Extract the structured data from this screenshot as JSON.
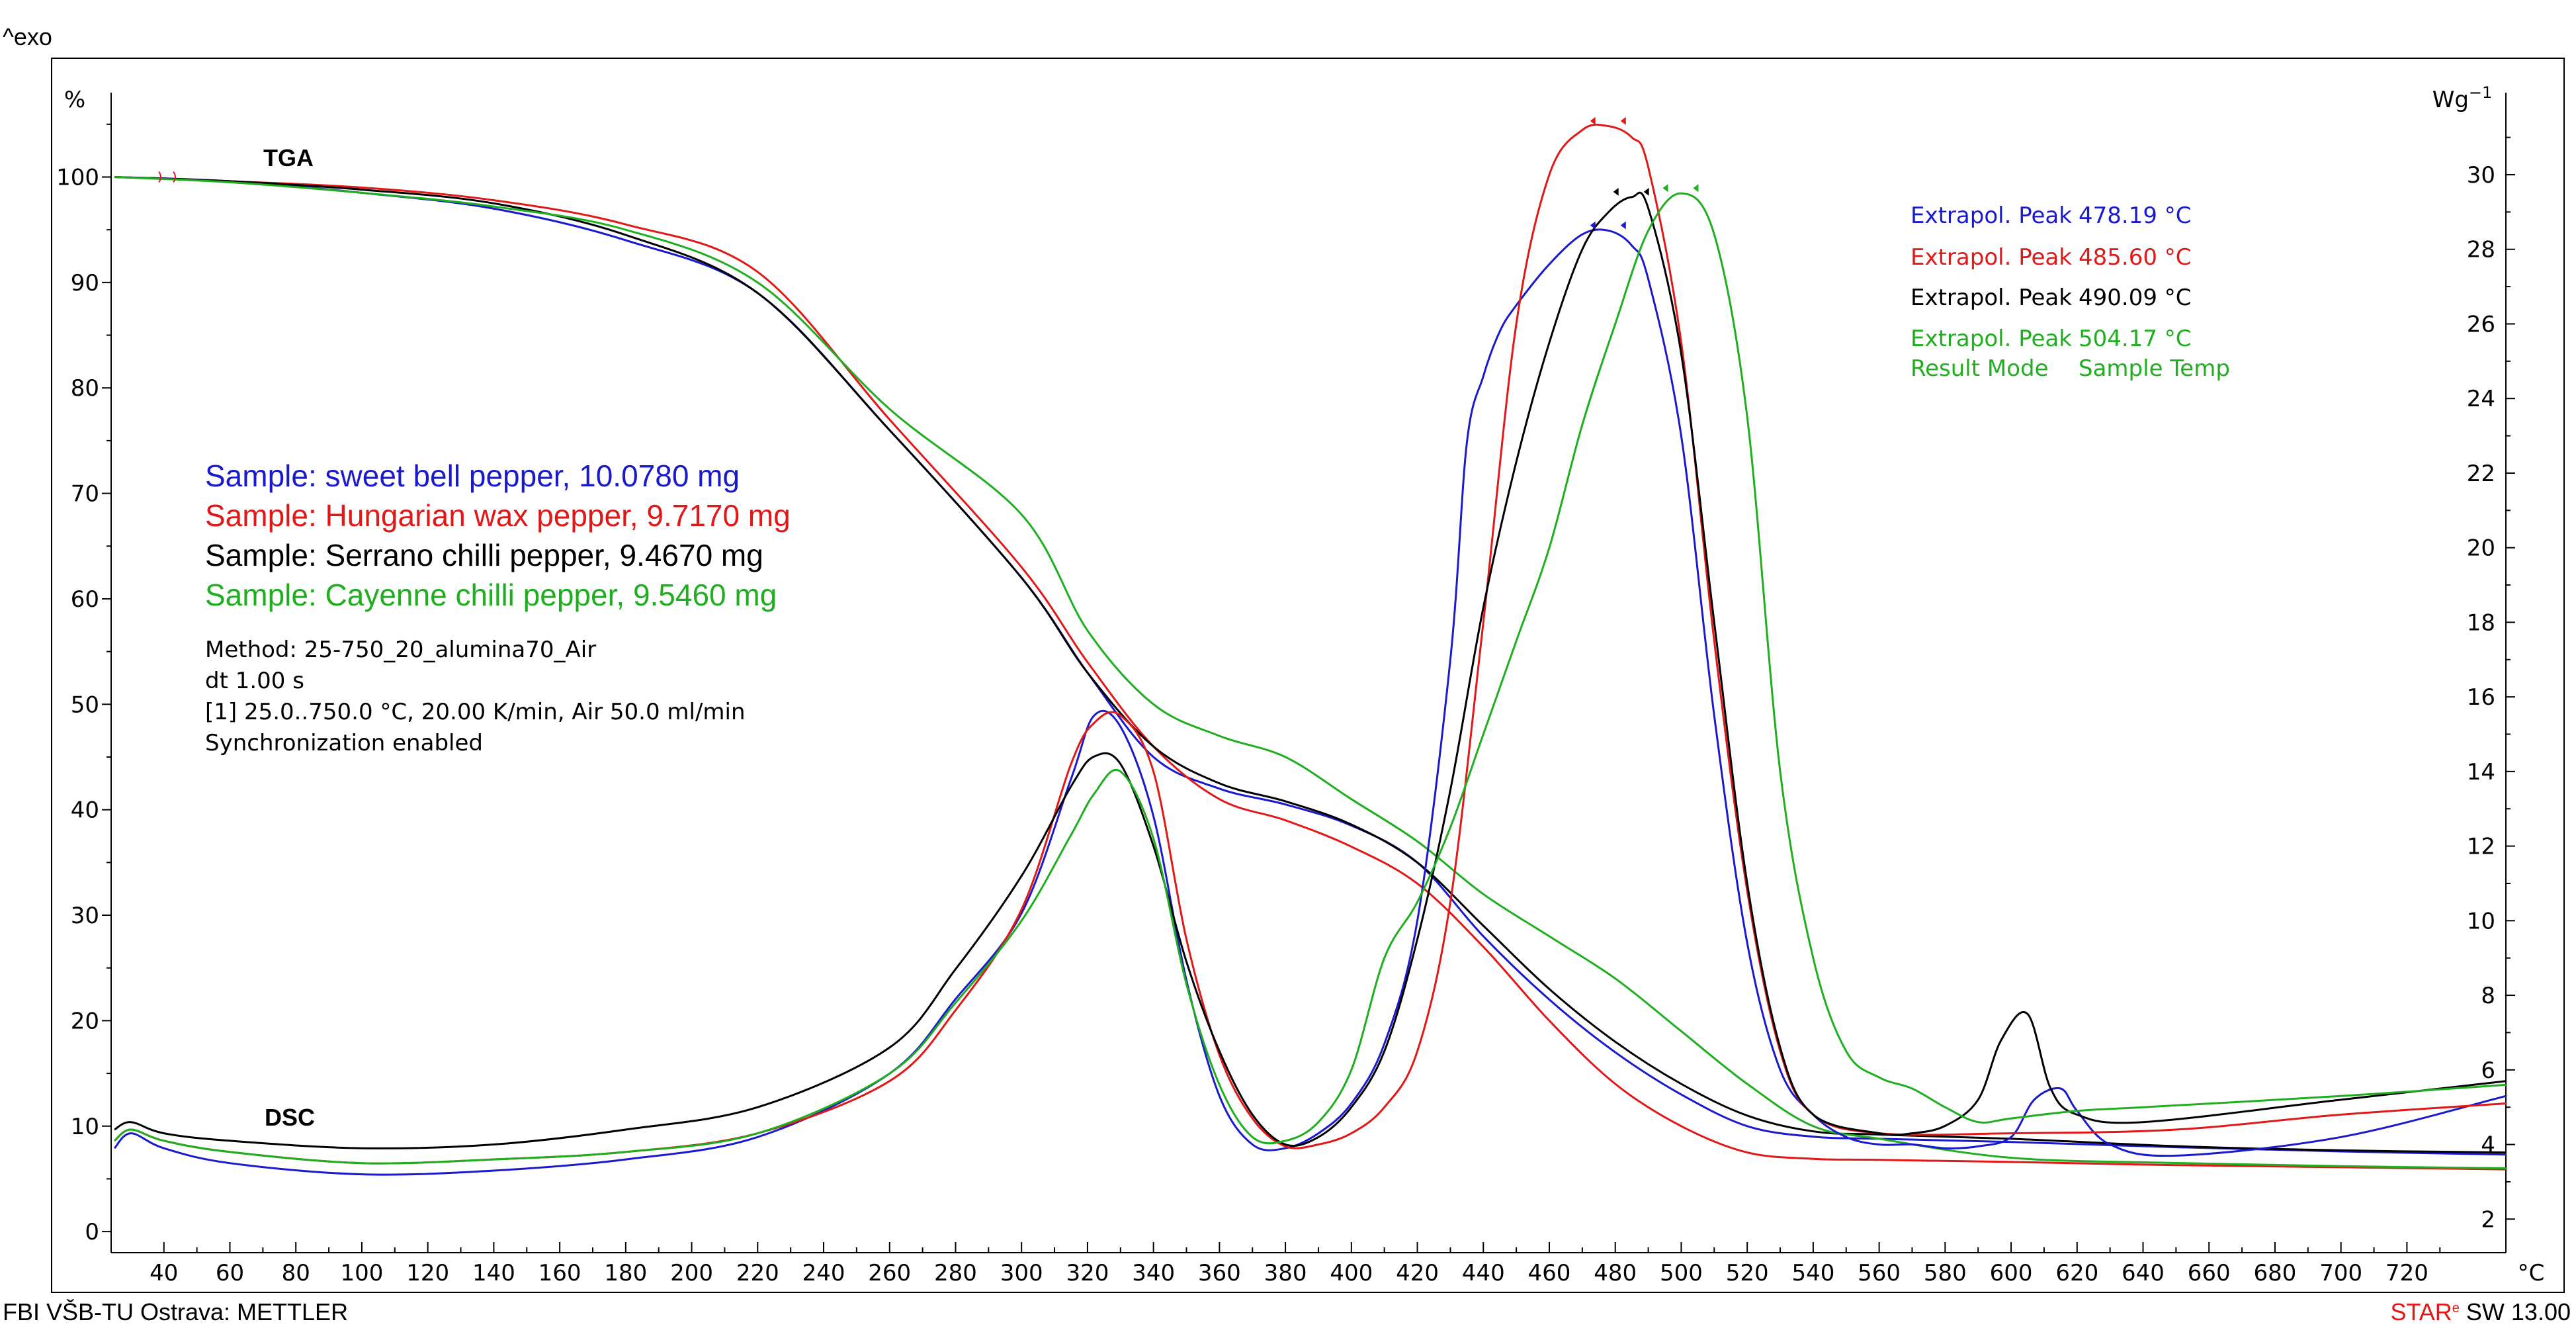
{
  "header": {
    "exo_label": "^exo"
  },
  "footer": {
    "left": "FBI VŠB-TU Ostrava: METTLER",
    "right_red": "STAR",
    "right_mark": "e",
    "right_black": " SW 13.00"
  },
  "colors": {
    "blue": "#1a1acc",
    "red": "#e01818",
    "black": "#000000",
    "green": "#1fae1f"
  },
  "chart_data": {
    "type": "line",
    "x_unit_label": "°C",
    "xlim": [
      24,
      750
    ],
    "x_ticks": [
      40,
      60,
      80,
      100,
      120,
      140,
      160,
      180,
      200,
      220,
      240,
      260,
      280,
      300,
      320,
      340,
      360,
      380,
      400,
      420,
      440,
      460,
      480,
      500,
      520,
      540,
      560,
      580,
      600,
      620,
      640,
      660,
      680,
      700,
      720
    ],
    "y_left_unit_label": "%",
    "y_left_lim": [
      -2,
      108
    ],
    "y_left_ticks": [
      0,
      10,
      20,
      30,
      40,
      50,
      60,
      70,
      80,
      90,
      100
    ],
    "y_right_unit_label": "Wg",
    "y_right_unit_exp": "−1",
    "y_right_lim": [
      1.1,
      32.2
    ],
    "y_right_ticks": [
      2,
      4,
      6,
      8,
      10,
      12,
      14,
      16,
      18,
      20,
      22,
      24,
      26,
      28,
      30
    ],
    "curve_labels": {
      "tga": "TGA",
      "dsc": "DSC"
    },
    "samples": [
      {
        "text": "Sample: sweet bell pepper, 10.0780 mg",
        "color": "blue"
      },
      {
        "text": "Sample: Hungarian wax pepper, 9.7170 mg",
        "color": "red"
      },
      {
        "text": "Sample: Serrano chilli pepper, 9.4670 mg",
        "color": "black"
      },
      {
        "text": "Sample: Cayenne chilli pepper, 9.5460 mg",
        "color": "green"
      }
    ],
    "method_lines": [
      "Method: 25-750_20_alumina70_Air",
      "dt 1.00 s",
      "[1] 25.0..750.0 °C, 20.00 K/min, Air 50.0 ml/min",
      "Synchronization enabled"
    ],
    "peaks": [
      {
        "label": "Extrapol. Peak",
        "value": "478.19 °C",
        "color": "blue"
      },
      {
        "label": "Extrapol. Peak",
        "value": "485.60 °C",
        "color": "red"
      },
      {
        "label": "Extrapol. Peak",
        "value": "490.09 °C",
        "color": "black"
      },
      {
        "label": "Extrapol. Peak",
        "value": "504.17 °C",
        "color": "green"
      }
    ],
    "result_mode": {
      "label": "Result Mode",
      "value": "Sample Temp",
      "color": "green"
    },
    "series": [
      {
        "curve": "TGA",
        "color": "blue",
        "axis": "left",
        "x": [
          25,
          60,
          100,
          140,
          180,
          220,
          260,
          300,
          320,
          340,
          360,
          380,
          400,
          420,
          440,
          460,
          480,
          500,
          520,
          540,
          560,
          600,
          650,
          700,
          750
        ],
        "y": [
          100,
          99.6,
          98.5,
          97,
          94,
          89,
          76,
          62,
          53,
          45,
          42,
          40.5,
          38.5,
          35,
          28,
          22,
          17,
          13,
          10,
          9,
          8.8,
          8.5,
          8,
          7.6,
          7.3
        ]
      },
      {
        "curve": "TGA",
        "color": "red",
        "axis": "left",
        "x": [
          25,
          60,
          100,
          140,
          180,
          220,
          260,
          300,
          320,
          340,
          360,
          380,
          400,
          420,
          440,
          460,
          480,
          500,
          520,
          540,
          560,
          600,
          650,
          700,
          750
        ],
        "y": [
          100,
          99.6,
          99,
          97.8,
          95.5,
          91,
          77,
          63,
          54,
          46,
          41,
          39,
          36.5,
          33,
          27,
          20,
          14,
          10,
          7.5,
          6.9,
          6.8,
          6.6,
          6.3,
          6.1,
          5.9
        ]
      },
      {
        "curve": "TGA",
        "color": "black",
        "axis": "left",
        "x": [
          25,
          60,
          100,
          140,
          180,
          220,
          260,
          300,
          320,
          340,
          360,
          380,
          400,
          420,
          440,
          460,
          480,
          500,
          520,
          540,
          560,
          600,
          650,
          700,
          750
        ],
        "y": [
          100,
          99.6,
          98.8,
          97.5,
          94.5,
          89,
          76,
          62,
          53,
          46,
          42.5,
          40.8,
          38.6,
          35,
          29,
          23,
          18,
          14,
          11,
          9.5,
          9.2,
          8.8,
          8.1,
          7.7,
          7.5
        ]
      },
      {
        "curve": "TGA",
        "color": "green",
        "axis": "left",
        "x": [
          25,
          60,
          100,
          140,
          180,
          220,
          260,
          300,
          320,
          340,
          360,
          380,
          400,
          420,
          440,
          460,
          480,
          500,
          520,
          540,
          560,
          600,
          650,
          700,
          750
        ],
        "y": [
          100,
          99.5,
          98.5,
          97.2,
          95,
          90,
          78,
          68,
          57,
          50,
          47,
          45,
          41,
          37,
          32,
          28,
          24,
          19,
          14,
          10,
          8.8,
          7,
          6.5,
          6.2,
          6
        ]
      },
      {
        "curve": "DSC",
        "color": "blue",
        "axis": "right",
        "x": [
          25,
          30,
          40,
          60,
          100,
          140,
          180,
          220,
          260,
          280,
          300,
          315,
          322,
          330,
          340,
          350,
          360,
          370,
          380,
          390,
          400,
          410,
          420,
          430,
          435,
          440,
          445,
          450,
          460,
          470,
          478,
          485,
          490,
          500,
          510,
          520,
          530,
          540,
          550,
          560,
          570,
          580,
          590,
          600,
          607,
          615,
          620,
          630,
          650,
          700,
          750
        ],
        "y": [
          3.9,
          4.3,
          3.9,
          3.5,
          3.2,
          3.3,
          3.6,
          4.2,
          5.9,
          7.9,
          10.2,
          13.8,
          15.5,
          15.2,
          12.8,
          8.4,
          5.3,
          4,
          3.9,
          4.3,
          5.1,
          6.7,
          10,
          17,
          22.8,
          24.6,
          25.8,
          26.5,
          27.6,
          28.4,
          28.5,
          28.1,
          27.2,
          23,
          15.5,
          9.4,
          6,
          4.8,
          4.2,
          4,
          4,
          3.9,
          3.95,
          4.2,
          5.2,
          5.5,
          4.9,
          4,
          3.7,
          4.2,
          5.3
        ]
      },
      {
        "curve": "DSC",
        "color": "red",
        "axis": "right",
        "x": [
          25,
          30,
          40,
          60,
          100,
          140,
          180,
          220,
          260,
          280,
          300,
          315,
          322,
          330,
          340,
          350,
          360,
          370,
          380,
          390,
          400,
          410,
          420,
          430,
          440,
          450,
          460,
          470,
          478,
          485,
          490,
          500,
          510,
          520,
          530,
          540,
          560,
          600,
          650,
          700,
          750
        ],
        "y": [
          4.1,
          4.4,
          4.1,
          3.8,
          3.5,
          3.6,
          3.8,
          4.3,
          5.7,
          7.6,
          10.3,
          14.2,
          15.3,
          15.5,
          14,
          9.5,
          6.4,
          4.7,
          3.95,
          4,
          4.3,
          5,
          6.5,
          10.5,
          18,
          26,
          30,
          31.2,
          31.3,
          31,
          30.2,
          25.5,
          17.5,
          10.8,
          6.5,
          4.8,
          4.3,
          4.3,
          4.4,
          4.8,
          5.1
        ]
      },
      {
        "curve": "DSC",
        "color": "black",
        "axis": "right",
        "x": [
          25,
          30,
          40,
          60,
          100,
          140,
          180,
          220,
          260,
          280,
          300,
          315,
          322,
          330,
          340,
          350,
          360,
          370,
          380,
          390,
          400,
          410,
          420,
          430,
          440,
          450,
          460,
          470,
          478,
          485,
          490,
          500,
          510,
          520,
          530,
          540,
          560,
          570,
          580,
          590,
          597,
          605,
          612,
          620,
          640,
          700,
          750
        ],
        "y": [
          4.4,
          4.6,
          4.3,
          4.1,
          3.9,
          4,
          4.4,
          5,
          6.6,
          8.7,
          11.2,
          13.6,
          14.4,
          14.2,
          12,
          8.9,
          6.5,
          4.8,
          4,
          4.2,
          5,
          6.5,
          9.5,
          13.5,
          18.4,
          22.3,
          25.5,
          28,
          29,
          29.4,
          29.1,
          25.2,
          18,
          11,
          6.6,
          4.8,
          4.3,
          4.3,
          4.5,
          5.2,
          6.8,
          7.5,
          5.5,
          4.8,
          4.6,
          5.2,
          5.7
        ]
      },
      {
        "curve": "DSC",
        "color": "green",
        "axis": "right",
        "x": [
          25,
          30,
          40,
          60,
          100,
          140,
          180,
          220,
          260,
          280,
          300,
          315,
          322,
          330,
          340,
          350,
          360,
          370,
          380,
          390,
          400,
          410,
          420,
          430,
          440,
          450,
          460,
          470,
          480,
          490,
          500,
          510,
          520,
          530,
          540,
          550,
          560,
          570,
          580,
          590,
          600,
          620,
          640,
          700,
          750
        ],
        "y": [
          4.1,
          4.4,
          4.1,
          3.8,
          3.5,
          3.6,
          3.8,
          4.3,
          5.9,
          7.8,
          10,
          12.3,
          13.4,
          14,
          12.2,
          8.3,
          5.6,
          4.2,
          4.1,
          4.6,
          6,
          9,
          10.5,
          12.5,
          15,
          17.5,
          20,
          23.3,
          26,
          28.5,
          29.5,
          28.4,
          23.5,
          14,
          9,
          6.5,
          5.8,
          5.5,
          5,
          4.6,
          4.7,
          4.9,
          5,
          5.3,
          5.6
        ]
      }
    ]
  }
}
